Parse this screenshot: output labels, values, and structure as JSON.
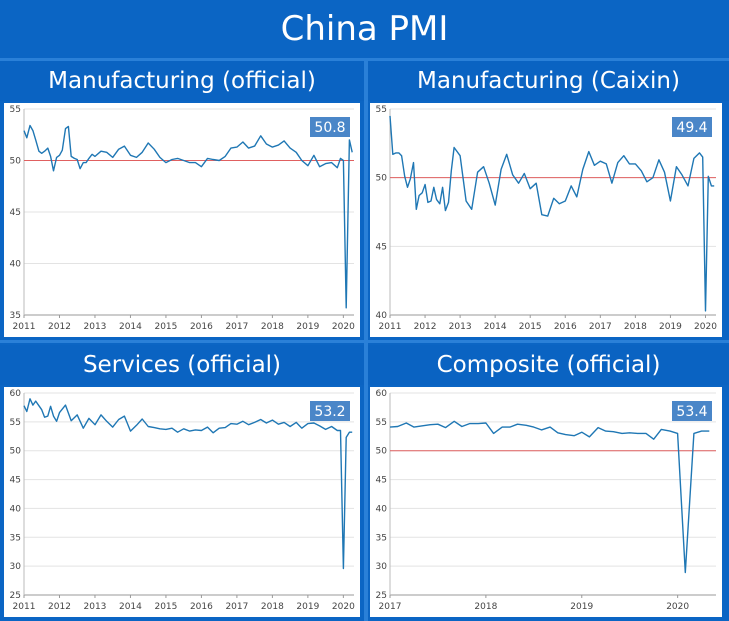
{
  "title": "China PMI",
  "chart_data": [
    {
      "type": "line",
      "title": "Manufacturing (official)",
      "callout": "50.8",
      "reference_line": 50,
      "ylim": [
        35,
        55
      ],
      "yticks": [
        35,
        40,
        45,
        50,
        55
      ],
      "xlim": [
        2011,
        2020.3
      ],
      "xticks": [
        "2011",
        "2012",
        "2013",
        "2014",
        "2015",
        "2016",
        "2017",
        "2018",
        "2019",
        "2020"
      ],
      "series": [
        {
          "color": "#1f77b4",
          "x": [
            2011.0,
            2011.08,
            2011.17,
            2011.25,
            2011.33,
            2011.42,
            2011.5,
            2011.58,
            2011.67,
            2011.75,
            2011.83,
            2011.92,
            2012.0,
            2012.08,
            2012.17,
            2012.25,
            2012.33,
            2012.42,
            2012.5,
            2012.58,
            2012.67,
            2012.75,
            2012.83,
            2012.92,
            2013.0,
            2013.17,
            2013.33,
            2013.5,
            2013.67,
            2013.83,
            2014.0,
            2014.17,
            2014.33,
            2014.5,
            2014.67,
            2014.83,
            2015.0,
            2015.17,
            2015.33,
            2015.5,
            2015.67,
            2015.83,
            2016.0,
            2016.17,
            2016.33,
            2016.5,
            2016.67,
            2016.83,
            2017.0,
            2017.17,
            2017.33,
            2017.5,
            2017.67,
            2017.83,
            2018.0,
            2018.17,
            2018.33,
            2018.5,
            2018.67,
            2018.83,
            2019.0,
            2019.17,
            2019.33,
            2019.5,
            2019.67,
            2019.83,
            2019.92,
            2020.0,
            2020.08,
            2020.17,
            2020.25
          ],
          "y": [
            52.9,
            52.2,
            53.4,
            52.9,
            52.0,
            50.9,
            50.7,
            50.9,
            51.2,
            50.4,
            49.0,
            50.3,
            50.5,
            51.0,
            53.1,
            53.3,
            50.4,
            50.2,
            50.1,
            49.2,
            49.8,
            49.8,
            50.2,
            50.6,
            50.4,
            50.9,
            50.8,
            50.3,
            51.1,
            51.4,
            50.5,
            50.3,
            50.8,
            51.7,
            51.1,
            50.3,
            49.8,
            50.1,
            50.2,
            50.0,
            49.8,
            49.8,
            49.4,
            50.2,
            50.1,
            50.0,
            50.4,
            51.2,
            51.3,
            51.8,
            51.2,
            51.4,
            52.4,
            51.6,
            51.3,
            51.5,
            51.9,
            51.2,
            50.8,
            50.0,
            49.5,
            50.5,
            49.4,
            49.7,
            49.8,
            49.3,
            50.2,
            50.0,
            35.7,
            52.0,
            50.8
          ]
        }
      ]
    },
    {
      "type": "line",
      "title": "Manufacturing (Caixin)",
      "callout": "49.4",
      "reference_line": 50,
      "ylim": [
        40,
        55
      ],
      "yticks": [
        40,
        45,
        50,
        55
      ],
      "xlim": [
        2011,
        2020.3
      ],
      "xticks": [
        "2011",
        "2012",
        "2013",
        "2014",
        "2015",
        "2016",
        "2017",
        "2018",
        "2019",
        "2020"
      ],
      "series": [
        {
          "color": "#1f77b4",
          "x": [
            2011.0,
            2011.08,
            2011.17,
            2011.25,
            2011.33,
            2011.42,
            2011.5,
            2011.58,
            2011.67,
            2011.75,
            2011.83,
            2011.92,
            2012.0,
            2012.08,
            2012.17,
            2012.25,
            2012.33,
            2012.42,
            2012.5,
            2012.58,
            2012.67,
            2012.75,
            2012.83,
            2013.0,
            2013.17,
            2013.33,
            2013.5,
            2013.67,
            2013.83,
            2014.0,
            2014.17,
            2014.33,
            2014.5,
            2014.67,
            2014.83,
            2015.0,
            2015.17,
            2015.33,
            2015.5,
            2015.67,
            2015.83,
            2016.0,
            2016.17,
            2016.33,
            2016.5,
            2016.67,
            2016.83,
            2017.0,
            2017.17,
            2017.33,
            2017.5,
            2017.67,
            2017.83,
            2018.0,
            2018.17,
            2018.33,
            2018.5,
            2018.67,
            2018.83,
            2019.0,
            2019.17,
            2019.33,
            2019.5,
            2019.67,
            2019.83,
            2019.92,
            2020.0,
            2020.08,
            2020.17,
            2020.25
          ],
          "y": [
            54.5,
            51.7,
            51.8,
            51.8,
            51.6,
            50.1,
            49.3,
            49.9,
            51.1,
            47.7,
            48.7,
            48.9,
            49.5,
            48.2,
            48.3,
            49.3,
            48.4,
            48.1,
            49.3,
            47.6,
            48.2,
            50.5,
            52.2,
            51.6,
            48.3,
            47.7,
            50.4,
            50.8,
            49.6,
            48.0,
            50.6,
            51.7,
            50.2,
            49.6,
            50.3,
            49.2,
            49.6,
            47.3,
            47.2,
            48.5,
            48.1,
            48.3,
            49.4,
            48.6,
            50.6,
            51.9,
            50.9,
            51.2,
            51.0,
            49.6,
            51.1,
            51.6,
            51.0,
            51.0,
            50.5,
            49.7,
            50.0,
            51.3,
            50.4,
            48.3,
            50.8,
            50.2,
            49.4,
            51.4,
            51.8,
            51.5,
            40.3,
            50.1,
            49.4,
            49.4
          ]
        }
      ]
    },
    {
      "type": "line",
      "title": "Services (official)",
      "callout": "53.2",
      "ylim": [
        25,
        60
      ],
      "yticks": [
        25,
        30,
        35,
        40,
        45,
        50,
        55,
        60
      ],
      "xlim": [
        2011,
        2020.3
      ],
      "xticks": [
        "2011",
        "2012",
        "2013",
        "2014",
        "2015",
        "2016",
        "2017",
        "2018",
        "2019",
        "2020"
      ],
      "series": [
        {
          "color": "#1f77b4",
          "x": [
            2011.0,
            2011.08,
            2011.17,
            2011.25,
            2011.33,
            2011.42,
            2011.5,
            2011.58,
            2011.67,
            2011.75,
            2011.83,
            2011.92,
            2012.0,
            2012.17,
            2012.33,
            2012.5,
            2012.67,
            2012.83,
            2013.0,
            2013.17,
            2013.33,
            2013.5,
            2013.67,
            2013.83,
            2014.0,
            2014.17,
            2014.33,
            2014.5,
            2014.67,
            2014.83,
            2015.0,
            2015.17,
            2015.33,
            2015.5,
            2015.67,
            2015.83,
            2016.0,
            2016.17,
            2016.33,
            2016.5,
            2016.67,
            2016.83,
            2017.0,
            2017.17,
            2017.33,
            2017.5,
            2017.67,
            2017.83,
            2018.0,
            2018.17,
            2018.33,
            2018.5,
            2018.67,
            2018.83,
            2019.0,
            2019.17,
            2019.33,
            2019.5,
            2019.67,
            2019.83,
            2019.92,
            2020.0,
            2020.08,
            2020.17,
            2020.25
          ],
          "y": [
            57.8,
            56.8,
            59.0,
            57.9,
            58.6,
            57.8,
            57.1,
            55.8,
            56.0,
            57.7,
            56.0,
            55.1,
            56.6,
            57.9,
            55.2,
            56.2,
            53.9,
            55.6,
            54.5,
            56.2,
            55.1,
            54.1,
            55.4,
            56.0,
            53.4,
            54.4,
            55.5,
            54.2,
            54.0,
            53.8,
            53.7,
            53.9,
            53.2,
            53.8,
            53.4,
            53.6,
            53.5,
            54.1,
            53.1,
            53.9,
            54.0,
            54.7,
            54.6,
            55.1,
            54.5,
            54.9,
            55.4,
            54.8,
            55.3,
            54.6,
            54.9,
            54.2,
            54.9,
            53.9,
            54.7,
            54.8,
            54.3,
            53.7,
            54.2,
            53.5,
            53.5,
            29.6,
            52.3,
            53.2,
            53.2
          ]
        }
      ]
    },
    {
      "type": "line",
      "title": "Composite (official)",
      "callout": "53.4",
      "reference_line": 50,
      "ylim": [
        25,
        60
      ],
      "yticks": [
        25,
        30,
        35,
        40,
        45,
        50,
        55,
        60
      ],
      "xlim": [
        2017,
        2020.4
      ],
      "xticks": [
        "2017",
        "2018",
        "2019",
        "2020"
      ],
      "series": [
        {
          "color": "#1f77b4",
          "x": [
            2017.0,
            2017.08,
            2017.17,
            2017.25,
            2017.33,
            2017.42,
            2017.5,
            2017.58,
            2017.67,
            2017.75,
            2017.83,
            2017.92,
            2018.0,
            2018.08,
            2018.17,
            2018.25,
            2018.33,
            2018.42,
            2018.5,
            2018.58,
            2018.67,
            2018.75,
            2018.83,
            2018.92,
            2019.0,
            2019.08,
            2019.17,
            2019.25,
            2019.33,
            2019.42,
            2019.5,
            2019.58,
            2019.67,
            2019.75,
            2019.83,
            2019.92,
            2020.0,
            2020.08,
            2020.17,
            2020.25,
            2020.33
          ],
          "y": [
            54.1,
            54.2,
            54.8,
            54.1,
            54.3,
            54.5,
            54.6,
            54.0,
            55.1,
            54.2,
            54.7,
            54.7,
            54.8,
            53.0,
            54.1,
            54.1,
            54.6,
            54.4,
            54.1,
            53.6,
            54.1,
            53.1,
            52.8,
            52.6,
            53.2,
            52.4,
            54.0,
            53.4,
            53.3,
            53.0,
            53.1,
            53.0,
            53.0,
            52.0,
            53.7,
            53.4,
            53.0,
            28.9,
            53.0,
            53.4,
            53.4
          ]
        }
      ]
    }
  ]
}
